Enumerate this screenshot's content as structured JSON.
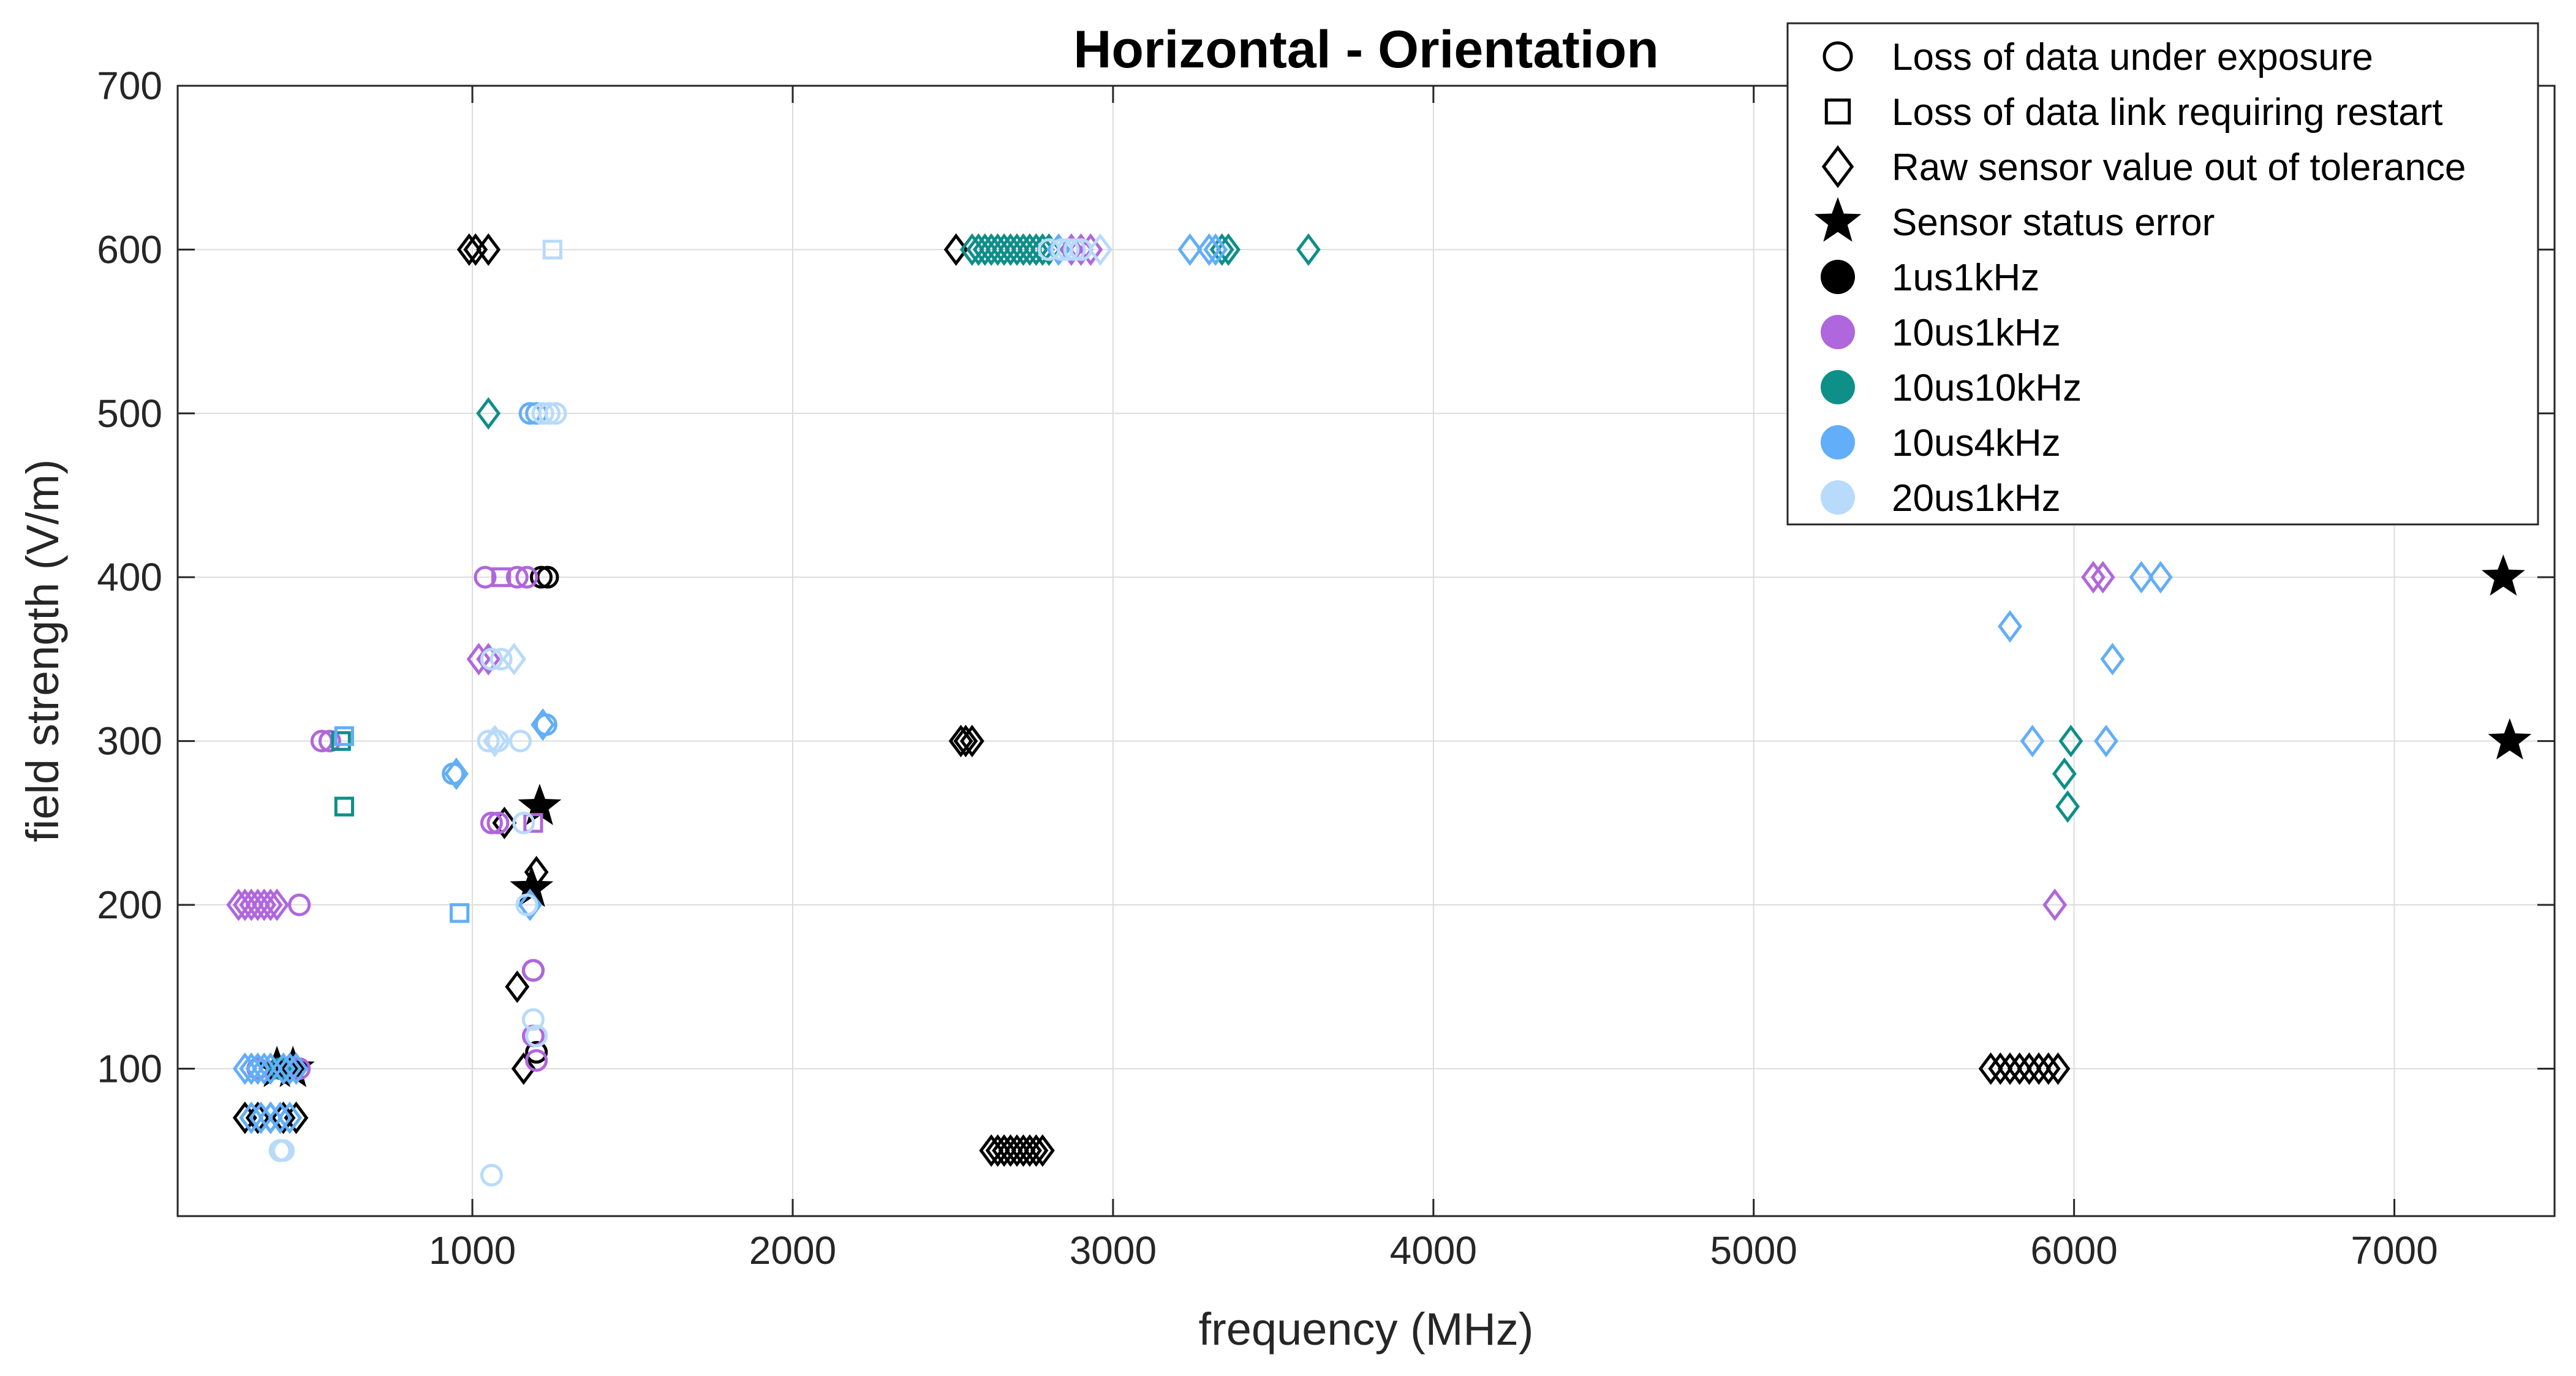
{
  "chart_data": {
    "type": "scatter",
    "title": "Horizontal - Orientation",
    "xlabel": "frequency (MHz)",
    "ylabel": "field strength (V/m)",
    "xlim": [
      80,
      7500
    ],
    "ylim": [
      10,
      700
    ],
    "xticks": [
      1000,
      2000,
      3000,
      4000,
      5000,
      6000,
      7000
    ],
    "yticks": [
      100,
      200,
      300,
      400,
      500,
      600,
      700
    ],
    "grid": true,
    "legend_position": "top-right",
    "marker_legend": [
      {
        "marker": "circle",
        "label": "Loss of data under exposure"
      },
      {
        "marker": "square",
        "label": "Loss of data link requiring restart"
      },
      {
        "marker": "diamond",
        "label": "Raw sensor value out of tolerance"
      },
      {
        "marker": "star",
        "label": "Sensor status error"
      }
    ],
    "series": [
      {
        "name": "1us1kHz",
        "color": "#000000",
        "points": [
          {
            "x": 990,
            "y": 600,
            "m": "diamond"
          },
          {
            "x": 1010,
            "y": 600,
            "m": "diamond"
          },
          {
            "x": 1050,
            "y": 600,
            "m": "diamond"
          },
          {
            "x": 1215,
            "y": 400,
            "m": "circle"
          },
          {
            "x": 1235,
            "y": 400,
            "m": "circle"
          },
          {
            "x": 2510,
            "y": 600,
            "m": "diamond"
          },
          {
            "x": 2525,
            "y": 300,
            "m": "diamond"
          },
          {
            "x": 2540,
            "y": 300,
            "m": "diamond"
          },
          {
            "x": 2560,
            "y": 300,
            "m": "diamond"
          },
          {
            "x": 2620,
            "y": 50,
            "m": "diamond"
          },
          {
            "x": 2640,
            "y": 50,
            "m": "diamond"
          },
          {
            "x": 2660,
            "y": 50,
            "m": "diamond"
          },
          {
            "x": 2680,
            "y": 50,
            "m": "diamond"
          },
          {
            "x": 2700,
            "y": 50,
            "m": "diamond"
          },
          {
            "x": 2720,
            "y": 50,
            "m": "diamond"
          },
          {
            "x": 2740,
            "y": 50,
            "m": "diamond"
          },
          {
            "x": 2760,
            "y": 50,
            "m": "diamond"
          },
          {
            "x": 2780,
            "y": 50,
            "m": "diamond"
          },
          {
            "x": 1210,
            "y": 260,
            "m": "star"
          },
          {
            "x": 1100,
            "y": 250,
            "m": "diamond"
          },
          {
            "x": 1200,
            "y": 220,
            "m": "diamond"
          },
          {
            "x": 1185,
            "y": 210,
            "m": "star"
          },
          {
            "x": 1190,
            "y": 160,
            "m": "circle"
          },
          {
            "x": 1140,
            "y": 150,
            "m": "diamond"
          },
          {
            "x": 1200,
            "y": 110,
            "m": "circle"
          },
          {
            "x": 1160,
            "y": 100,
            "m": "diamond"
          },
          {
            "x": 290,
            "y": 70,
            "m": "diamond"
          },
          {
            "x": 330,
            "y": 70,
            "m": "diamond"
          },
          {
            "x": 370,
            "y": 70,
            "m": "diamond"
          },
          {
            "x": 410,
            "y": 70,
            "m": "diamond"
          },
          {
            "x": 450,
            "y": 70,
            "m": "diamond"
          },
          {
            "x": 390,
            "y": 100,
            "m": "star"
          },
          {
            "x": 440,
            "y": 100,
            "m": "star"
          },
          {
            "x": 5740,
            "y": 100,
            "m": "diamond"
          },
          {
            "x": 5770,
            "y": 100,
            "m": "diamond"
          },
          {
            "x": 5800,
            "y": 100,
            "m": "diamond"
          },
          {
            "x": 5830,
            "y": 100,
            "m": "diamond"
          },
          {
            "x": 5860,
            "y": 100,
            "m": "diamond"
          },
          {
            "x": 5890,
            "y": 100,
            "m": "diamond"
          },
          {
            "x": 5920,
            "y": 100,
            "m": "diamond"
          },
          {
            "x": 5950,
            "y": 100,
            "m": "diamond"
          },
          {
            "x": 7340,
            "y": 400,
            "m": "star"
          },
          {
            "x": 7360,
            "y": 300,
            "m": "star"
          }
        ]
      },
      {
        "name": "10us1kHz",
        "color": "#B066DD",
        "points": [
          {
            "x": 1040,
            "y": 400,
            "m": "circle"
          },
          {
            "x": 1090,
            "y": 400,
            "m": "square"
          },
          {
            "x": 1140,
            "y": 400,
            "m": "circle"
          },
          {
            "x": 1170,
            "y": 400,
            "m": "circle"
          },
          {
            "x": 1020,
            "y": 350,
            "m": "diamond"
          },
          {
            "x": 1050,
            "y": 350,
            "m": "diamond"
          },
          {
            "x": 1060,
            "y": 250,
            "m": "circle"
          },
          {
            "x": 1080,
            "y": 250,
            "m": "circle"
          },
          {
            "x": 1190,
            "y": 250,
            "m": "square"
          },
          {
            "x": 1190,
            "y": 160,
            "m": "circle"
          },
          {
            "x": 1190,
            "y": 120,
            "m": "circle"
          },
          {
            "x": 1200,
            "y": 105,
            "m": "circle"
          },
          {
            "x": 460,
            "y": 200,
            "m": "circle"
          },
          {
            "x": 270,
            "y": 200,
            "m": "diamond"
          },
          {
            "x": 290,
            "y": 200,
            "m": "diamond"
          },
          {
            "x": 310,
            "y": 200,
            "m": "diamond"
          },
          {
            "x": 330,
            "y": 200,
            "m": "diamond"
          },
          {
            "x": 350,
            "y": 200,
            "m": "diamond"
          },
          {
            "x": 370,
            "y": 200,
            "m": "diamond"
          },
          {
            "x": 390,
            "y": 200,
            "m": "diamond"
          },
          {
            "x": 460,
            "y": 100,
            "m": "circle"
          },
          {
            "x": 330,
            "y": 100,
            "m": "circle"
          },
          {
            "x": 530,
            "y": 300,
            "m": "circle"
          },
          {
            "x": 555,
            "y": 300,
            "m": "circle"
          },
          {
            "x": 2870,
            "y": 600,
            "m": "diamond"
          },
          {
            "x": 2900,
            "y": 600,
            "m": "diamond"
          },
          {
            "x": 2930,
            "y": 600,
            "m": "diamond"
          },
          {
            "x": 6060,
            "y": 400,
            "m": "diamond"
          },
          {
            "x": 6090,
            "y": 400,
            "m": "diamond"
          },
          {
            "x": 5940,
            "y": 200,
            "m": "diamond"
          }
        ]
      },
      {
        "name": "10us10kHz",
        "color": "#0E8F88",
        "points": [
          {
            "x": 1050,
            "y": 500,
            "m": "diamond"
          },
          {
            "x": 590,
            "y": 300,
            "m": "square"
          },
          {
            "x": 600,
            "y": 260,
            "m": "square"
          },
          {
            "x": 400,
            "y": 50,
            "m": "circle"
          },
          {
            "x": 400,
            "y": 100,
            "m": "circle"
          },
          {
            "x": 2560,
            "y": 600,
            "m": "diamond"
          },
          {
            "x": 2580,
            "y": 600,
            "m": "diamond"
          },
          {
            "x": 2600,
            "y": 600,
            "m": "diamond"
          },
          {
            "x": 2620,
            "y": 600,
            "m": "diamond"
          },
          {
            "x": 2640,
            "y": 600,
            "m": "diamond"
          },
          {
            "x": 2660,
            "y": 600,
            "m": "diamond"
          },
          {
            "x": 2680,
            "y": 600,
            "m": "diamond"
          },
          {
            "x": 2700,
            "y": 600,
            "m": "diamond"
          },
          {
            "x": 2720,
            "y": 600,
            "m": "diamond"
          },
          {
            "x": 2740,
            "y": 600,
            "m": "diamond"
          },
          {
            "x": 2760,
            "y": 600,
            "m": "diamond"
          },
          {
            "x": 2780,
            "y": 600,
            "m": "diamond"
          },
          {
            "x": 2800,
            "y": 600,
            "m": "diamond"
          },
          {
            "x": 3340,
            "y": 600,
            "m": "diamond"
          },
          {
            "x": 3360,
            "y": 600,
            "m": "diamond"
          },
          {
            "x": 3610,
            "y": 600,
            "m": "diamond"
          },
          {
            "x": 5990,
            "y": 300,
            "m": "diamond"
          },
          {
            "x": 5970,
            "y": 280,
            "m": "diamond"
          },
          {
            "x": 5980,
            "y": 260,
            "m": "diamond"
          }
        ]
      },
      {
        "name": "10us4kHz",
        "color": "#62AEF8",
        "points": [
          {
            "x": 1180,
            "y": 500,
            "m": "circle"
          },
          {
            "x": 1200,
            "y": 500,
            "m": "circle"
          },
          {
            "x": 1220,
            "y": 310,
            "m": "diamond"
          },
          {
            "x": 1230,
            "y": 310,
            "m": "circle"
          },
          {
            "x": 940,
            "y": 280,
            "m": "circle"
          },
          {
            "x": 950,
            "y": 280,
            "m": "diamond"
          },
          {
            "x": 960,
            "y": 195,
            "m": "square"
          },
          {
            "x": 1180,
            "y": 200,
            "m": "diamond"
          },
          {
            "x": 600,
            "y": 303,
            "m": "square"
          },
          {
            "x": 290,
            "y": 100,
            "m": "diamond"
          },
          {
            "x": 310,
            "y": 100,
            "m": "diamond"
          },
          {
            "x": 330,
            "y": 100,
            "m": "diamond"
          },
          {
            "x": 350,
            "y": 100,
            "m": "diamond"
          },
          {
            "x": 370,
            "y": 100,
            "m": "diamond"
          },
          {
            "x": 410,
            "y": 100,
            "m": "diamond"
          },
          {
            "x": 430,
            "y": 100,
            "m": "diamond"
          },
          {
            "x": 450,
            "y": 100,
            "m": "diamond"
          },
          {
            "x": 310,
            "y": 70,
            "m": "diamond"
          },
          {
            "x": 340,
            "y": 70,
            "m": "diamond"
          },
          {
            "x": 370,
            "y": 70,
            "m": "diamond"
          },
          {
            "x": 400,
            "y": 70,
            "m": "diamond"
          },
          {
            "x": 430,
            "y": 70,
            "m": "diamond"
          },
          {
            "x": 2830,
            "y": 600,
            "m": "diamond"
          },
          {
            "x": 3240,
            "y": 600,
            "m": "diamond"
          },
          {
            "x": 3300,
            "y": 600,
            "m": "diamond"
          },
          {
            "x": 3320,
            "y": 600,
            "m": "diamond"
          },
          {
            "x": 5800,
            "y": 370,
            "m": "diamond"
          },
          {
            "x": 6120,
            "y": 350,
            "m": "diamond"
          },
          {
            "x": 5870,
            "y": 300,
            "m": "diamond"
          },
          {
            "x": 6100,
            "y": 300,
            "m": "diamond"
          },
          {
            "x": 6210,
            "y": 400,
            "m": "diamond"
          },
          {
            "x": 6270,
            "y": 400,
            "m": "diamond"
          }
        ]
      },
      {
        "name": "20us1kHz",
        "color": "#B8DAFB",
        "points": [
          {
            "x": 1220,
            "y": 500,
            "m": "circle"
          },
          {
            "x": 1240,
            "y": 500,
            "m": "circle"
          },
          {
            "x": 1260,
            "y": 500,
            "m": "circle"
          },
          {
            "x": 1250,
            "y": 600,
            "m": "square"
          },
          {
            "x": 1060,
            "y": 350,
            "m": "circle"
          },
          {
            "x": 1090,
            "y": 350,
            "m": "circle"
          },
          {
            "x": 1130,
            "y": 350,
            "m": "diamond"
          },
          {
            "x": 1050,
            "y": 300,
            "m": "circle"
          },
          {
            "x": 1080,
            "y": 300,
            "m": "circle"
          },
          {
            "x": 1150,
            "y": 300,
            "m": "circle"
          },
          {
            "x": 1070,
            "y": 300,
            "m": "diamond"
          },
          {
            "x": 1160,
            "y": 250,
            "m": "circle"
          },
          {
            "x": 1170,
            "y": 200,
            "m": "circle"
          },
          {
            "x": 1190,
            "y": 130,
            "m": "circle"
          },
          {
            "x": 1200,
            "y": 120,
            "m": "circle"
          },
          {
            "x": 1060,
            "y": 35,
            "m": "circle"
          },
          {
            "x": 400,
            "y": 50,
            "m": "circle"
          },
          {
            "x": 410,
            "y": 50,
            "m": "circle"
          },
          {
            "x": 2840,
            "y": 600,
            "m": "circle"
          },
          {
            "x": 2860,
            "y": 600,
            "m": "circle"
          },
          {
            "x": 2880,
            "y": 600,
            "m": "circle"
          },
          {
            "x": 2900,
            "y": 600,
            "m": "circle"
          },
          {
            "x": 2960,
            "y": 600,
            "m": "diamond"
          },
          {
            "x": 2800,
            "y": 600,
            "m": "circle"
          }
        ]
      }
    ]
  }
}
